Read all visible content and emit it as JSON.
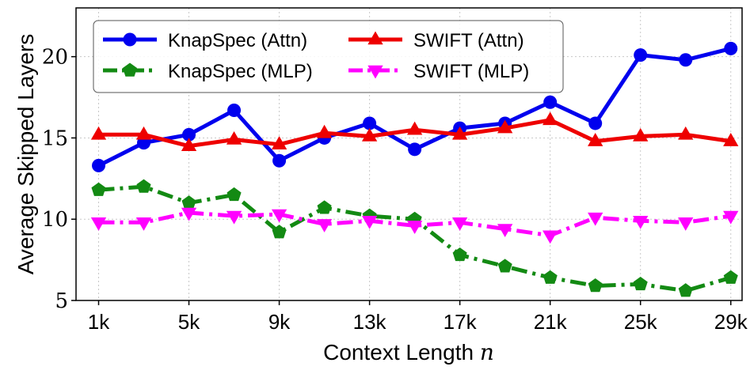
{
  "chart_data": {
    "type": "line",
    "xlabel": "Context Length",
    "xlabel_var": "n",
    "ylabel": "Average Skipped Layers",
    "xlim": [
      0,
      29.5
    ],
    "ylim": [
      5,
      23
    ],
    "x_ticks": [
      1,
      5,
      9,
      13,
      17,
      21,
      25,
      29
    ],
    "x_tick_labels": [
      "1k",
      "5k",
      "9k",
      "13k",
      "17k",
      "21k",
      "25k",
      "29k"
    ],
    "y_ticks": [
      5,
      10,
      15,
      20
    ],
    "y_tick_labels": [
      "5",
      "10",
      "15",
      "20"
    ],
    "grid": true,
    "legend_position": "top-left",
    "x": [
      1,
      3,
      5,
      7,
      9,
      11,
      13,
      15,
      17,
      19,
      21,
      23,
      25,
      27,
      29
    ],
    "series": [
      {
        "name": "KnapSpec (Attn)",
        "color": "#0000ee",
        "marker": "circle",
        "linestyle": "solid",
        "values": [
          13.3,
          14.7,
          15.2,
          16.7,
          13.6,
          15.0,
          15.9,
          14.3,
          15.6,
          15.9,
          17.2,
          15.9,
          20.1,
          19.8,
          20.5
        ]
      },
      {
        "name": "SWIFT (Attn)",
        "color": "#ee0000",
        "marker": "triangle-up",
        "linestyle": "solid",
        "values": [
          15.2,
          15.2,
          14.5,
          14.9,
          14.6,
          15.3,
          15.1,
          15.5,
          15.2,
          15.6,
          16.1,
          14.8,
          15.1,
          15.2,
          14.8
        ]
      },
      {
        "name": "KnapSpec (MLP)",
        "color": "#138a13",
        "marker": "pentagon",
        "linestyle": "dashdot",
        "values": [
          11.8,
          12.0,
          11.0,
          11.5,
          9.2,
          10.7,
          10.2,
          10.0,
          7.8,
          7.1,
          6.4,
          5.9,
          6.0,
          5.6,
          6.4
        ]
      },
      {
        "name": "SWIFT (MLP)",
        "color": "#ff00ff",
        "marker": "triangle-down",
        "linestyle": "dashdot",
        "values": [
          9.8,
          9.8,
          10.4,
          10.2,
          10.3,
          9.7,
          9.9,
          9.6,
          9.8,
          9.4,
          9.0,
          10.1,
          9.9,
          9.8,
          10.2
        ]
      }
    ]
  }
}
